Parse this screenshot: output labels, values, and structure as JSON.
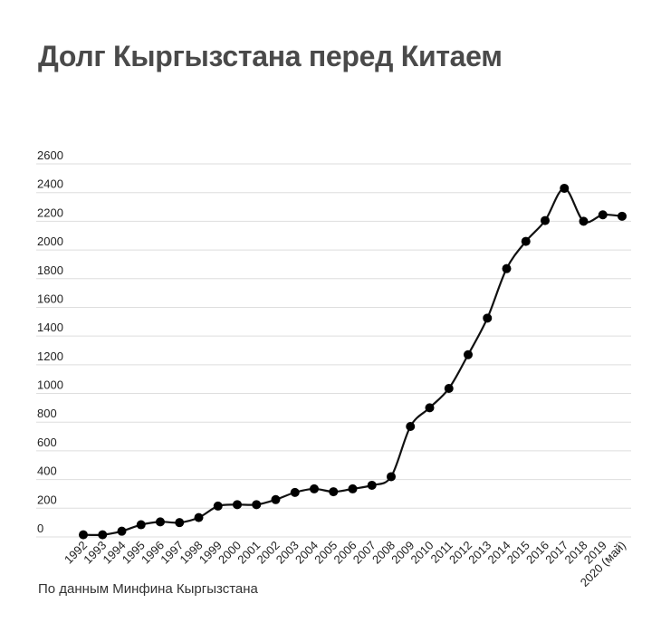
{
  "title": "Долг Кыргызстана перед Китаем",
  "source": "По данным Минфина Кыргызстана",
  "chart_data": {
    "type": "line",
    "title": "Долг Кыргызстана перед Китаем",
    "xlabel": "",
    "ylabel": "",
    "categories": [
      "1992",
      "1993",
      "1994",
      "1995",
      "1996",
      "1997",
      "1998",
      "1999",
      "2000",
      "2001",
      "2002",
      "2003",
      "2004",
      "2005",
      "2006",
      "2007",
      "2008",
      "2009",
      "2010",
      "2011",
      "2012",
      "2013",
      "2014",
      "2015",
      "2016",
      "2017",
      "2018",
      "2019",
      "2020 (май)"
    ],
    "series": [
      {
        "values": [
          15,
          15,
          40,
          85,
          105,
          100,
          135,
          215,
          225,
          225,
          260,
          310,
          335,
          315,
          335,
          360,
          420,
          770,
          900,
          1035,
          1270,
          1525,
          1870,
          2060,
          2205,
          2430,
          2200,
          2245,
          2235
        ]
      }
    ],
    "yticks": [
      0,
      200,
      400,
      600,
      800,
      1000,
      1200,
      1400,
      1600,
      1800,
      2000,
      2200,
      2400,
      2600
    ],
    "ylim": [
      0,
      2600
    ],
    "grid": true,
    "legend": "none",
    "line_color": "#111111",
    "grid_color": "#dedede"
  }
}
